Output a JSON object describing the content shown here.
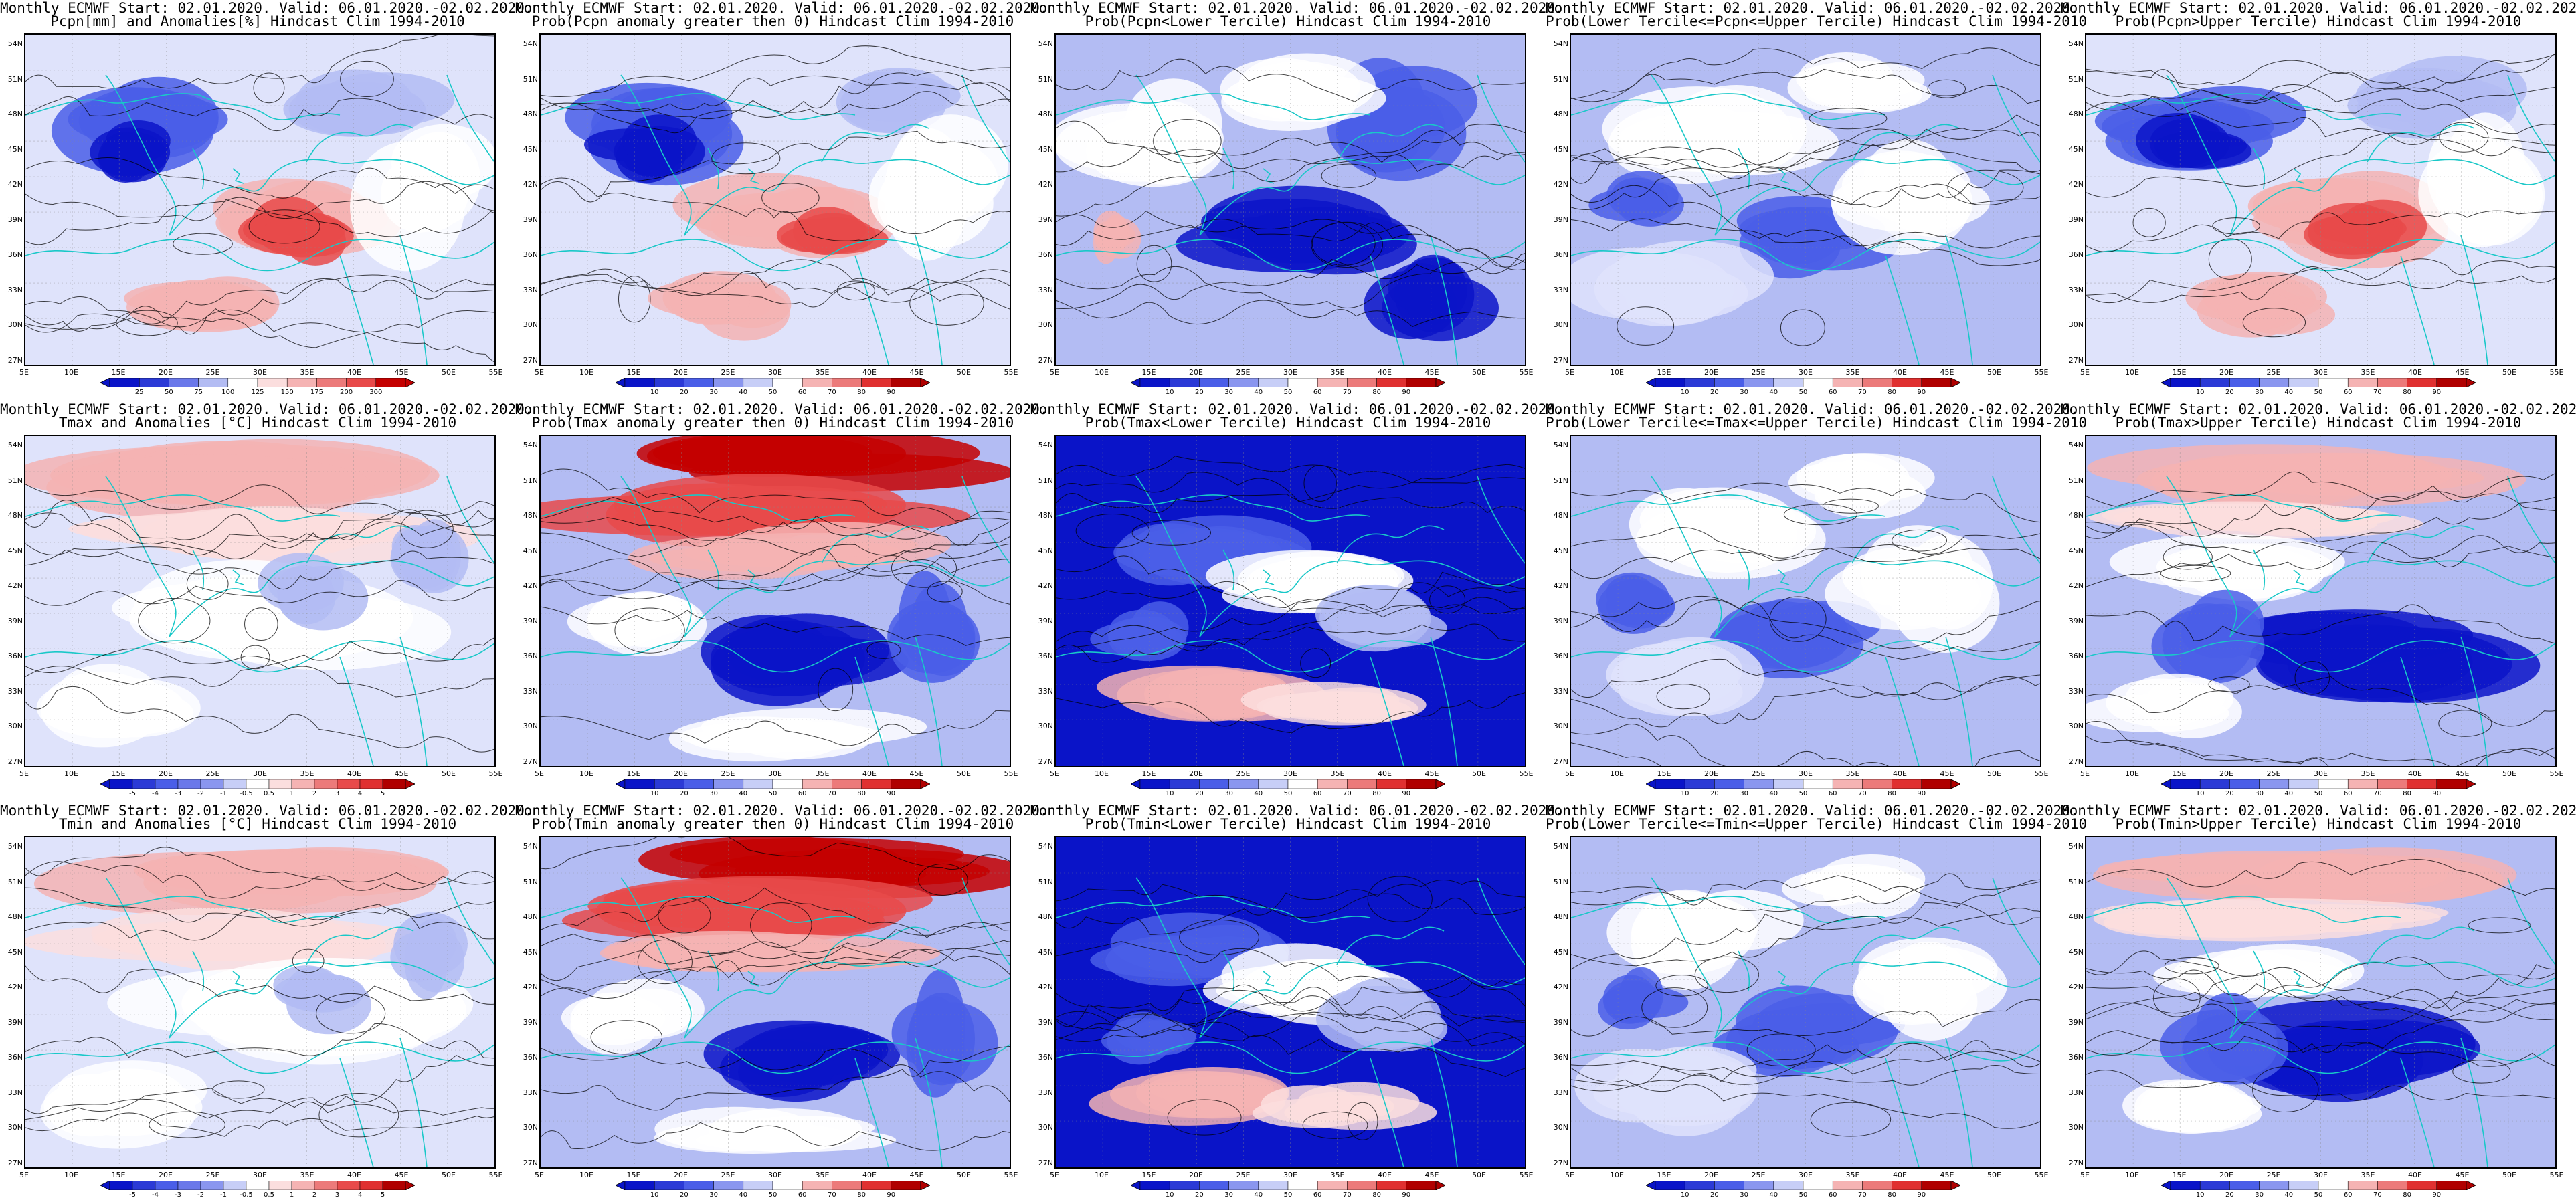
{
  "figure": {
    "header": "Monthly ECMWF Start: 02.01.2020. Valid: 06.01.2020.-02.02.2020.",
    "y_ticks": [
      "54N",
      "51N",
      "48N",
      "45N",
      "42N",
      "39N",
      "36N",
      "33N",
      "30N",
      "27N"
    ],
    "x_ticks": [
      "5E",
      "10E",
      "15E",
      "20E",
      "25E",
      "30E",
      "35E",
      "40E",
      "45E",
      "50E",
      "55E"
    ],
    "colors": {
      "coast": "#19c8c8",
      "contour": "#000000",
      "deep_red": "#c40000",
      "red": "#e84a4a",
      "light_red": "#f5b3b3",
      "pale_red": "#fbdede",
      "white": "#ffffff",
      "pale_blue": "#dfe3fb",
      "light_blue": "#b3bcf3",
      "blue": "#4a5ee8",
      "deep_blue": "#0a14c8"
    }
  },
  "colorbars": {
    "pcpn_anom": {
      "labels": [
        "25",
        "50",
        "75",
        "100",
        "125",
        "150",
        "175",
        "200",
        "300"
      ],
      "colors": [
        "#0a14c8",
        "#2b3ad6",
        "#6a78ea",
        "#b3bcf3",
        "#ffffff",
        "#fbdede",
        "#f5b3b3",
        "#ec7a7a",
        "#e84a4a",
        "#c40000"
      ]
    },
    "prob": {
      "labels": [
        "10",
        "20",
        "30",
        "40",
        "50",
        "60",
        "70",
        "80",
        "90"
      ],
      "colors": [
        "#0a14c8",
        "#2b3ad6",
        "#4a5ee8",
        "#8a96ef",
        "#c7cef7",
        "#ffffff",
        "#f5b3b3",
        "#ec7a7a",
        "#e03030",
        "#b00000"
      ]
    },
    "temp_anom": {
      "labels": [
        "-5",
        "-4",
        "-3",
        "-2",
        "-1",
        "-0.5",
        "0.5",
        "1",
        "2",
        "3",
        "4",
        "5"
      ],
      "colors": [
        "#0a14c8",
        "#2b3ad6",
        "#4a5ee8",
        "#6a78ea",
        "#8a96ef",
        "#c7cef7",
        "#ffffff",
        "#fbdede",
        "#f5b3b3",
        "#ec7a7a",
        "#e84a4a",
        "#e03030",
        "#b00000"
      ]
    }
  },
  "panels": [
    {
      "id": "p11",
      "row": 0,
      "col": 0,
      "subtitle": "Pcpn[mm] and Anomalies[%] Hindcast Clim 1994-2010",
      "cbar": "pcpn_anom",
      "scheme": "pcpn",
      "seed": 11
    },
    {
      "id": "p12",
      "row": 0,
      "col": 1,
      "subtitle": "Prob(Pcpn anomaly greater then 0) Hindcast Clim 1994-2010",
      "cbar": "prob",
      "scheme": "pcpn",
      "seed": 12
    },
    {
      "id": "p13",
      "row": 0,
      "col": 2,
      "subtitle": "Prob(Pcpn<Lower Tercile) Hindcast Clim 1994-2010",
      "cbar": "prob",
      "scheme": "pcpn_low",
      "seed": 13
    },
    {
      "id": "p14",
      "row": 0,
      "col": 3,
      "subtitle": "Prob(Lower Tercile<=Pcpn<=Upper Tercile) Hindcast Clim 1994-2010",
      "cbar": "prob",
      "scheme": "mid",
      "seed": 14
    },
    {
      "id": "p15",
      "row": 0,
      "col": 4,
      "subtitle": "Prob(Pcpn>Upper Tercile) Hindcast Clim 1994-2010",
      "cbar": "prob",
      "scheme": "pcpn",
      "seed": 15
    },
    {
      "id": "p21",
      "row": 1,
      "col": 0,
      "subtitle": "Tmax and Anomalies [°C] Hindcast Clim 1994-2010",
      "cbar": "temp_anom",
      "scheme": "temp_anom",
      "seed": 21
    },
    {
      "id": "p22",
      "row": 1,
      "col": 1,
      "subtitle": "Prob(Tmax anomaly greater then 0) Hindcast Clim 1994-2010",
      "cbar": "prob",
      "scheme": "temp_prob",
      "seed": 22
    },
    {
      "id": "p23",
      "row": 1,
      "col": 2,
      "subtitle": "Prob(Tmax<Lower Tercile) Hindcast Clim 1994-2010",
      "cbar": "prob",
      "scheme": "temp_low",
      "seed": 23
    },
    {
      "id": "p24",
      "row": 1,
      "col": 3,
      "subtitle": "Prob(Lower Tercile<=Tmax<=Upper Tercile) Hindcast Clim 1994-2010",
      "cbar": "prob",
      "scheme": "mid",
      "seed": 24
    },
    {
      "id": "p25",
      "row": 1,
      "col": 4,
      "subtitle": "Prob(Tmax>Upper Tercile) Hindcast Clim 1994-2010",
      "cbar": "prob",
      "scheme": "temp_up",
      "seed": 25
    },
    {
      "id": "p31",
      "row": 2,
      "col": 0,
      "subtitle": "Tmin and Anomalies [°C] Hindcast Clim 1994-2010",
      "cbar": "temp_anom",
      "scheme": "temp_anom",
      "seed": 31
    },
    {
      "id": "p32",
      "row": 2,
      "col": 1,
      "subtitle": "Prob(Tmin anomaly greater then 0) Hindcast Clim 1994-2010",
      "cbar": "prob",
      "scheme": "temp_prob",
      "seed": 32
    },
    {
      "id": "p33",
      "row": 2,
      "col": 2,
      "subtitle": "Prob(Tmin<Lower Tercile) Hindcast Clim 1994-2010",
      "cbar": "prob",
      "scheme": "temp_low",
      "seed": 33
    },
    {
      "id": "p34",
      "row": 2,
      "col": 3,
      "subtitle": "Prob(Lower Tercile<=Tmin<=Upper Tercile) Hindcast Clim 1994-2010",
      "cbar": "prob",
      "scheme": "mid",
      "seed": 34
    },
    {
      "id": "p35",
      "row": 2,
      "col": 4,
      "subtitle": "Prob(Tmin>Upper Tercile) Hindcast Clim 1994-2010",
      "cbar": "prob",
      "scheme": "temp_up",
      "seed": 35
    }
  ]
}
